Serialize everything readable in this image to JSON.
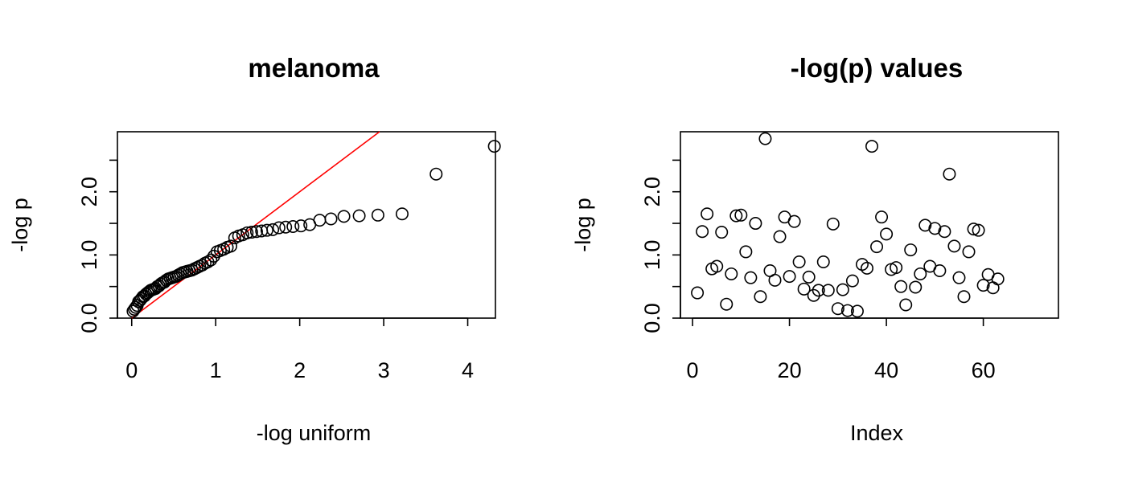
{
  "chart_data": [
    {
      "type": "scatter",
      "title": "melanoma",
      "xlabel": "-log uniform",
      "ylabel": "-log p",
      "xlim": [
        -0.17,
        4.33
      ],
      "ylim": [
        0,
        2.95
      ],
      "xticks": [
        0,
        1,
        2,
        3,
        4
      ],
      "xtick_labels": [
        "0",
        "1",
        "2",
        "3",
        "4"
      ],
      "yticks": [
        0.0,
        0.5,
        1.0,
        1.5,
        2.0,
        2.5
      ],
      "ytick_labels": [
        "0.0",
        "",
        "1.0",
        "",
        "2.0",
        ""
      ],
      "reference_line": {
        "slope": 1,
        "intercept": 0,
        "color": "#ff0000"
      },
      "points": {
        "x": [
          0.016,
          0.032,
          0.048,
          0.065,
          0.082,
          0.099,
          0.117,
          0.134,
          0.152,
          0.17,
          0.189,
          0.207,
          0.226,
          0.245,
          0.265,
          0.285,
          0.305,
          0.325,
          0.346,
          0.367,
          0.389,
          0.411,
          0.434,
          0.457,
          0.48,
          0.504,
          0.528,
          0.553,
          0.579,
          0.605,
          0.632,
          0.659,
          0.688,
          0.716,
          0.746,
          0.776,
          0.808,
          0.84,
          0.873,
          0.907,
          0.942,
          0.978,
          1.016,
          1.055,
          1.095,
          1.137,
          1.18,
          1.226,
          1.273,
          1.322,
          1.374,
          1.428,
          1.486,
          1.546,
          1.61,
          1.679,
          1.753,
          1.833,
          1.92,
          2.015,
          2.12,
          2.238,
          2.372,
          2.526,
          2.708,
          2.931,
          3.219,
          3.624,
          4.317
        ],
        "y": [
          0.11,
          0.14,
          0.17,
          0.2,
          0.26,
          0.28,
          0.31,
          0.34,
          0.35,
          0.38,
          0.4,
          0.42,
          0.44,
          0.45,
          0.46,
          0.47,
          0.5,
          0.51,
          0.54,
          0.56,
          0.57,
          0.6,
          0.62,
          0.63,
          0.64,
          0.65,
          0.66,
          0.68,
          0.7,
          0.72,
          0.73,
          0.74,
          0.75,
          0.76,
          0.78,
          0.8,
          0.82,
          0.84,
          0.87,
          0.89,
          0.92,
          0.98,
          1.05,
          1.07,
          1.09,
          1.12,
          1.14,
          1.27,
          1.3,
          1.32,
          1.35,
          1.36,
          1.37,
          1.38,
          1.39,
          1.4,
          1.43,
          1.44,
          1.45,
          1.46,
          1.48,
          1.55,
          1.57,
          1.61,
          1.62,
          1.63,
          1.65,
          2.28,
          2.72
        ]
      }
    },
    {
      "type": "scatter",
      "title": "-log(p) values",
      "xlabel": "Index",
      "ylabel": "-log p",
      "xlim": [
        -2.5,
        75.5
      ],
      "ylim": [
        0,
        2.95
      ],
      "xticks": [
        0,
        20,
        40,
        60
      ],
      "xtick_labels": [
        "0",
        "20",
        "40",
        "60"
      ],
      "yticks": [
        0.0,
        0.5,
        1.0,
        1.5,
        2.0,
        2.5
      ],
      "ytick_labels": [
        "0.0",
        "",
        "1.0",
        "",
        "2.0",
        ""
      ],
      "points": {
        "x": [
          1,
          2,
          3,
          4,
          5,
          6,
          7,
          8,
          9,
          10,
          11,
          12,
          13,
          14,
          15,
          16,
          17,
          18,
          19,
          20,
          21,
          22,
          23,
          24,
          25,
          26,
          27,
          28,
          29,
          30,
          31,
          32,
          33,
          34,
          35,
          36,
          37,
          38,
          39,
          40,
          41,
          42,
          43,
          44,
          45,
          46,
          47,
          48,
          49,
          50,
          51,
          52,
          53,
          54,
          55,
          56,
          57,
          58,
          59,
          60,
          61,
          62,
          63
        ],
        "y": [
          0.4,
          1.37,
          1.65,
          0.78,
          0.82,
          1.36,
          0.22,
          0.7,
          1.62,
          1.63,
          1.05,
          0.64,
          1.5,
          0.34,
          2.84,
          0.75,
          0.6,
          1.29,
          1.6,
          0.66,
          1.53,
          0.89,
          0.46,
          0.65,
          0.36,
          0.44,
          0.89,
          0.44,
          1.49,
          0.15,
          0.45,
          0.12,
          0.59,
          0.11,
          0.85,
          0.79,
          2.72,
          1.13,
          1.6,
          1.33,
          0.77,
          0.8,
          0.5,
          0.21,
          1.08,
          0.49,
          0.7,
          1.47,
          0.82,
          1.42,
          0.75,
          1.37,
          2.28,
          1.14,
          0.64,
          0.34,
          1.05,
          1.41,
          1.39,
          0.52,
          0.69,
          0.48,
          0.62
        ]
      }
    }
  ]
}
